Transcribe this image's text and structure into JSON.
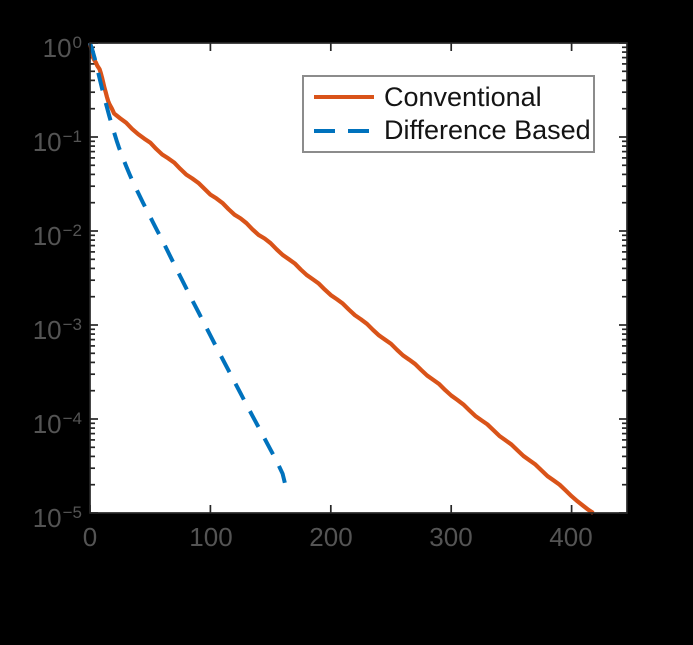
{
  "figure": {
    "background": "#000000",
    "plot_background": "#ffffff",
    "axis_color": "#262626",
    "tick_label_color": "#545454"
  },
  "legend": {
    "background": "#ffffff",
    "border_color": "#8c8c8c",
    "position": "upper-right-inside",
    "entries": [
      {
        "label": "Conventional",
        "color": "#D95319",
        "style": "solid"
      },
      {
        "label": "Difference Based",
        "color": "#0072BD",
        "style": "dashed"
      }
    ]
  },
  "chart_data": {
    "type": "line",
    "title": "",
    "xlabel": "",
    "ylabel": "",
    "grid": false,
    "y_scale": "log",
    "xlim": [
      0,
      446
    ],
    "ylim": [
      1e-05,
      1
    ],
    "legend_position": "upper right inside",
    "xticks": {
      "values": [
        0,
        100,
        200,
        300,
        400
      ],
      "labels": [
        "0",
        "100",
        "200",
        "300",
        "400"
      ]
    },
    "yticks": [
      {
        "value": 1,
        "base": "10",
        "exp": "0"
      },
      {
        "value": 0.1,
        "base": "10",
        "exp": "−1"
      },
      {
        "value": 0.01,
        "base": "10",
        "exp": "−2"
      },
      {
        "value": 0.001,
        "base": "10",
        "exp": "−3"
      },
      {
        "value": 0.0001,
        "base": "10",
        "exp": "−4"
      },
      {
        "value": 1e-05,
        "base": "10",
        "exp": "−5"
      }
    ],
    "series": [
      {
        "name": "Conventional",
        "color": "#D95319",
        "style": "solid",
        "line_width": 4.2,
        "points": [
          [
            0,
            1.0
          ],
          [
            1,
            0.88
          ],
          [
            2,
            0.74
          ],
          [
            3,
            0.68
          ],
          [
            4,
            0.645
          ],
          [
            5,
            0.615
          ],
          [
            6,
            0.575
          ],
          [
            7,
            0.55
          ],
          [
            8,
            0.525
          ],
          [
            9,
            0.48
          ],
          [
            10,
            0.43
          ],
          [
            11,
            0.38
          ],
          [
            12,
            0.335
          ],
          [
            13,
            0.3
          ],
          [
            14,
            0.268
          ],
          [
            15,
            0.242
          ],
          [
            16,
            0.225
          ],
          [
            17,
            0.213
          ],
          [
            18,
            0.202
          ],
          [
            19,
            0.19
          ],
          [
            20,
            0.178
          ],
          [
            25,
            0.158
          ],
          [
            30,
            0.142
          ],
          [
            35,
            0.122
          ],
          [
            40,
            0.107
          ],
          [
            45,
            0.0962
          ],
          [
            50,
            0.0872
          ],
          [
            55,
            0.0748
          ],
          [
            60,
            0.0652
          ],
          [
            65,
            0.0592
          ],
          [
            70,
            0.0533
          ],
          [
            75,
            0.0458
          ],
          [
            80,
            0.0398
          ],
          [
            85,
            0.0362
          ],
          [
            90,
            0.0325
          ],
          [
            95,
            0.0281
          ],
          [
            100,
            0.0244
          ],
          [
            105,
            0.0222
          ],
          [
            110,
            0.0199
          ],
          [
            115,
            0.0171
          ],
          [
            120,
            0.0149
          ],
          [
            125,
            0.0136
          ],
          [
            130,
            0.0121
          ],
          [
            135,
            0.0104
          ],
          [
            140,
            0.0091
          ],
          [
            145,
            0.00832
          ],
          [
            150,
            0.00741
          ],
          [
            155,
            0.00639
          ],
          [
            160,
            0.00557
          ],
          [
            165,
            0.00503
          ],
          [
            170,
            0.00452
          ],
          [
            175,
            0.00389
          ],
          [
            180,
            0.0034
          ],
          [
            185,
            0.00307
          ],
          [
            190,
            0.00276
          ],
          [
            195,
            0.00238
          ],
          [
            200,
            0.00208
          ],
          [
            205,
            0.00188
          ],
          [
            210,
            0.00169
          ],
          [
            215,
            0.00146
          ],
          [
            220,
            0.00127
          ],
          [
            225,
            0.00115
          ],
          [
            230,
            0.00103
          ],
          [
            235,
            0.000888
          ],
          [
            240,
            0.000775
          ],
          [
            245,
            0.0007
          ],
          [
            250,
            0.000631
          ],
          [
            255,
            0.000545
          ],
          [
            260,
            0.000475
          ],
          [
            265,
            0.000428
          ],
          [
            270,
            0.000385
          ],
          [
            275,
            0.000333
          ],
          [
            280,
            0.00029
          ],
          [
            285,
            0.000261
          ],
          [
            290,
            0.000235
          ],
          [
            295,
            0.000203
          ],
          [
            300,
            0.000178
          ],
          [
            305,
            0.00016
          ],
          [
            310,
            0.000143
          ],
          [
            315,
            0.000124
          ],
          [
            320,
            0.000108
          ],
          [
            325,
            9.72e-05
          ],
          [
            330,
            8.78e-05
          ],
          [
            335,
            7.62e-05
          ],
          [
            340,
            6.61e-05
          ],
          [
            345,
            5.95e-05
          ],
          [
            350,
            5.36e-05
          ],
          [
            355,
            4.64e-05
          ],
          [
            360,
            4.04e-05
          ],
          [
            365,
            3.64e-05
          ],
          [
            370,
            3.27e-05
          ],
          [
            375,
            2.84e-05
          ],
          [
            380,
            2.47e-05
          ],
          [
            385,
            2.22e-05
          ],
          [
            390,
            2e-05
          ],
          [
            395,
            1.74e-05
          ],
          [
            400,
            1.51e-05
          ],
          [
            405,
            1.33e-05
          ],
          [
            410,
            1.18e-05
          ],
          [
            414,
            1.08e-05
          ],
          [
            418,
            1e-05
          ]
        ]
      },
      {
        "name": "Difference Based",
        "color": "#0072BD",
        "style": "dashed",
        "dash_pattern": [
          18,
          13
        ],
        "line_width": 4,
        "points": [
          [
            0,
            1.0
          ],
          [
            2,
            0.84
          ],
          [
            4,
            0.68
          ],
          [
            6,
            0.54
          ],
          [
            8,
            0.42
          ],
          [
            10,
            0.33
          ],
          [
            12,
            0.26
          ],
          [
            14,
            0.208
          ],
          [
            16,
            0.167
          ],
          [
            18,
            0.136
          ],
          [
            20,
            0.112
          ],
          [
            22,
            0.0925
          ],
          [
            24,
            0.0775
          ],
          [
            27,
            0.0614
          ],
          [
            30,
            0.0492
          ],
          [
            33,
            0.0398
          ],
          [
            36,
            0.0325
          ],
          [
            40,
            0.0254
          ],
          [
            44,
            0.02
          ],
          [
            48,
            0.0159
          ],
          [
            52,
            0.0126
          ],
          [
            56,
            0.01
          ],
          [
            60,
            0.008
          ],
          [
            65,
            0.00592
          ],
          [
            70,
            0.0044
          ],
          [
            75,
            0.00328
          ],
          [
            80,
            0.00245
          ],
          [
            85,
            0.00183
          ],
          [
            90,
            0.00137
          ],
          [
            95,
            0.00103
          ],
          [
            100,
            0.000773
          ],
          [
            105,
            0.000581
          ],
          [
            110,
            0.000438
          ],
          [
            115,
            0.00033
          ],
          [
            120,
            0.000249
          ],
          [
            125,
            0.000188
          ],
          [
            130,
            0.000142
          ],
          [
            135,
            0.000108
          ],
          [
            140,
            8.16e-05
          ],
          [
            145,
            6.19e-05
          ],
          [
            150,
            4.7e-05
          ],
          [
            155,
            3.57e-05
          ],
          [
            160,
            2.62e-05
          ],
          [
            164,
            1.6e-05
          ]
        ]
      }
    ]
  }
}
